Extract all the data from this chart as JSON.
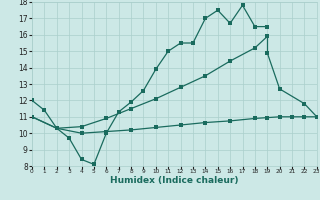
{
  "bg_color": "#cce8e6",
  "grid_color": "#aacfcc",
  "line_color": "#1a6b5e",
  "xlabel": "Humidex (Indice chaleur)",
  "xlim": [
    -0.5,
    23.5
  ],
  "ylim": [
    8,
    18
  ],
  "line1": [
    [
      0,
      12.0
    ],
    [
      1,
      11.4
    ],
    [
      2,
      10.3
    ],
    [
      3,
      9.7
    ],
    [
      4,
      8.4
    ],
    [
      5,
      8.1
    ],
    [
      6,
      10.0
    ],
    [
      7,
      11.3
    ],
    [
      8,
      11.9
    ],
    [
      9,
      12.6
    ],
    [
      10,
      13.9
    ],
    [
      11,
      15.0
    ],
    [
      12,
      15.5
    ],
    [
      13,
      15.5
    ],
    [
      14,
      17.0
    ],
    [
      15,
      17.5
    ],
    [
      16,
      16.7
    ],
    [
      17,
      17.8
    ],
    [
      18,
      16.5
    ],
    [
      19,
      16.5
    ]
  ],
  "line2": [
    [
      0,
      11.0
    ],
    [
      2,
      10.3
    ],
    [
      4,
      10.4
    ],
    [
      6,
      10.9
    ],
    [
      8,
      11.5
    ],
    [
      10,
      12.1
    ],
    [
      12,
      12.8
    ],
    [
      14,
      13.5
    ],
    [
      16,
      14.4
    ],
    [
      18,
      15.2
    ],
    [
      19,
      15.9
    ]
  ],
  "line3": [
    [
      0,
      11.0
    ],
    [
      2,
      10.3
    ],
    [
      4,
      10.0
    ],
    [
      6,
      10.1
    ],
    [
      8,
      10.2
    ],
    [
      10,
      10.35
    ],
    [
      12,
      10.5
    ],
    [
      14,
      10.65
    ],
    [
      16,
      10.75
    ],
    [
      18,
      10.9
    ],
    [
      19,
      10.95
    ],
    [
      20,
      11.0
    ],
    [
      21,
      11.0
    ],
    [
      22,
      11.0
    ],
    [
      23,
      11.0
    ]
  ],
  "line4": [
    [
      19,
      14.9
    ],
    [
      20,
      12.7
    ],
    [
      22,
      11.8
    ],
    [
      23,
      11.0
    ]
  ]
}
